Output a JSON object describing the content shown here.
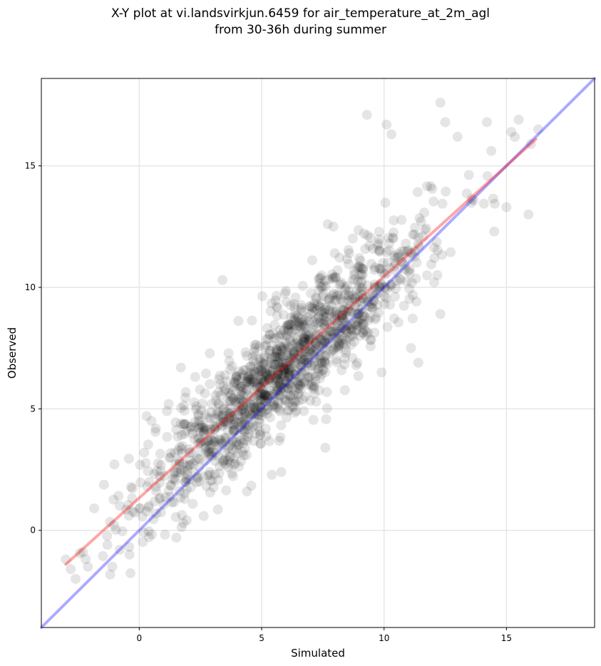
{
  "chart_data": {
    "type": "scatter",
    "title_line_1": "X-Y plot at vi.landsvirkjun.6459 for air_temperature_at_2m_agl",
    "title_line_2": "from 30-36h during summer",
    "xlabel": "Simulated",
    "ylabel": "Observed",
    "xlim": [
      -4,
      18.6
    ],
    "ylim": [
      -4,
      18.6
    ],
    "x_ticks": [
      0,
      5,
      10,
      15
    ],
    "y_ticks": [
      0,
      5,
      10,
      15
    ],
    "grid": true,
    "point_color": "#000000",
    "point_opacity": 0.1,
    "identity_line": {
      "color": "#0000ff",
      "opacity": 0.33,
      "x": [
        -4,
        18.6
      ],
      "y": [
        -4,
        18.6
      ]
    },
    "fit_line": {
      "color": "#ff0000",
      "opacity": 0.35,
      "x": [
        -3.0,
        16.2
      ],
      "y": [
        -1.4,
        16.1
      ]
    },
    "points": {
      "n": 1400,
      "slope": 0.91,
      "intercept": 1.3,
      "x_mean": 6.0,
      "x_sd": 2.9,
      "x_range": [
        -3.0,
        16.3
      ],
      "residual_sd": 1.2
    },
    "sample_points": [
      [
        -3.0,
        -1.2
      ],
      [
        -2.8,
        -1.6
      ],
      [
        -2.6,
        -2.0
      ],
      [
        -2.3,
        -0.9
      ],
      [
        -2.1,
        -1.5
      ],
      [
        -1.3,
        -0.6
      ],
      [
        -1.1,
        -1.5
      ],
      [
        -0.8,
        -0.8
      ],
      [
        -0.4,
        -1.0
      ],
      [
        0.0,
        0.9
      ],
      [
        0.2,
        3.2
      ],
      [
        0.3,
        4.7
      ],
      [
        0.5,
        4.5
      ],
      [
        1.2,
        5.2
      ],
      [
        1.7,
        6.7
      ],
      [
        1.8,
        0.3
      ],
      [
        3.4,
        10.3
      ],
      [
        4.4,
        1.6
      ],
      [
        5.8,
        2.4
      ],
      [
        5.5,
        7.9
      ],
      [
        7.6,
        3.4
      ],
      [
        7.7,
        12.6
      ],
      [
        9.3,
        17.1
      ],
      [
        9.9,
        6.5
      ],
      [
        10.1,
        16.7
      ],
      [
        10.3,
        16.3
      ],
      [
        11.1,
        7.5
      ],
      [
        11.4,
        6.9
      ],
      [
        12.3,
        8.9
      ],
      [
        12.3,
        17.6
      ],
      [
        12.5,
        16.8
      ],
      [
        13.0,
        16.2
      ],
      [
        14.2,
        16.8
      ],
      [
        14.5,
        12.3
      ],
      [
        15.0,
        13.3
      ],
      [
        15.2,
        16.4
      ],
      [
        15.5,
        16.9
      ],
      [
        15.9,
        13.0
      ],
      [
        16.0,
        15.9
      ],
      [
        16.3,
        16.5
      ]
    ]
  }
}
